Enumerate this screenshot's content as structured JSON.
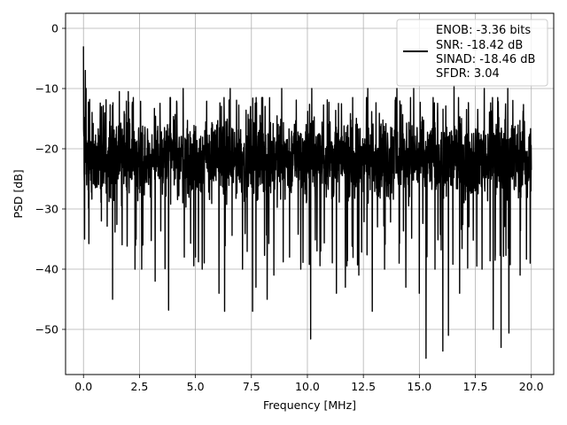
{
  "chart_data": {
    "type": "line",
    "xlabel": "Frequency [MHz]",
    "ylabel": "PSD [dB]",
    "xlim": [
      -0.8,
      21.0
    ],
    "ylim": [
      -57.5,
      2.5
    ],
    "xticks": [
      0.0,
      2.5,
      5.0,
      7.5,
      10.0,
      12.5,
      15.0,
      17.5,
      20.0
    ],
    "xtick_labels": [
      "0.0",
      "2.5",
      "5.0",
      "7.5",
      "10.0",
      "12.5",
      "15.0",
      "17.5",
      "20.0"
    ],
    "yticks": [
      0,
      -10,
      -20,
      -30,
      -40,
      -50
    ],
    "ytick_labels": [
      "0",
      "−10",
      "−20",
      "−30",
      "−40",
      "−50"
    ],
    "grid": true,
    "legend_position": "top-right",
    "legend_lines": [
      "ENOB: -3.36 bits",
      "SNR: -18.42 dB",
      "SINAD: -18.46 dB",
      "SFDR: 3.04"
    ],
    "series": [
      {
        "color": "#000000",
        "x_range": [
          0.0,
          20.0
        ],
        "typical_range": [
          -30,
          -13
        ],
        "mean": -21.5,
        "start_value": -3.0,
        "peaks": [
          {
            "x": 0.08,
            "y": -7.0
          },
          {
            "x": 0.12,
            "y": -10.0
          },
          {
            "x": 1.6,
            "y": -10.5
          },
          {
            "x": 2.0,
            "y": -10.5
          },
          {
            "x": 4.45,
            "y": -10.0
          },
          {
            "x": 6.55,
            "y": -10.0
          },
          {
            "x": 8.85,
            "y": -10.0
          },
          {
            "x": 10.2,
            "y": -10.0
          },
          {
            "x": 12.7,
            "y": -10.0
          },
          {
            "x": 14.0,
            "y": -10.0
          },
          {
            "x": 14.75,
            "y": -10.0
          },
          {
            "x": 16.55,
            "y": -9.5
          },
          {
            "x": 17.9,
            "y": -10.0
          },
          {
            "x": 18.3,
            "y": -10.0
          },
          {
            "x": 18.95,
            "y": -10.0
          },
          {
            "x": 19.95,
            "y": -10.0
          }
        ],
        "troughs": [
          {
            "x": 0.05,
            "y": -35.0
          },
          {
            "x": 0.8,
            "y": -32.0
          },
          {
            "x": 1.3,
            "y": -45.0
          },
          {
            "x": 2.3,
            "y": -40.0
          },
          {
            "x": 2.6,
            "y": -40.0
          },
          {
            "x": 2.65,
            "y": -36.0
          },
          {
            "x": 3.2,
            "y": -42.0
          },
          {
            "x": 3.8,
            "y": -46.8
          },
          {
            "x": 4.5,
            "y": -38.0
          },
          {
            "x": 5.0,
            "y": -38.0
          },
          {
            "x": 5.3,
            "y": -40.0
          },
          {
            "x": 6.05,
            "y": -44.0
          },
          {
            "x": 6.3,
            "y": -47.0
          },
          {
            "x": 7.1,
            "y": -40.0
          },
          {
            "x": 7.55,
            "y": -47.0
          },
          {
            "x": 7.7,
            "y": -43.0
          },
          {
            "x": 8.2,
            "y": -45.0
          },
          {
            "x": 8.5,
            "y": -41.0
          },
          {
            "x": 9.2,
            "y": -38.0
          },
          {
            "x": 9.7,
            "y": -40.0
          },
          {
            "x": 10.15,
            "y": -51.6
          },
          {
            "x": 10.6,
            "y": -37.0
          },
          {
            "x": 11.3,
            "y": -44.0
          },
          {
            "x": 11.7,
            "y": -43.0
          },
          {
            "x": 12.3,
            "y": -41.0
          },
          {
            "x": 12.9,
            "y": -47.0
          },
          {
            "x": 13.45,
            "y": -40.0
          },
          {
            "x": 14.1,
            "y": -39.0
          },
          {
            "x": 14.4,
            "y": -43.0
          },
          {
            "x": 15.0,
            "y": -44.0
          },
          {
            "x": 15.3,
            "y": -54.8
          },
          {
            "x": 15.7,
            "y": -40.0
          },
          {
            "x": 16.05,
            "y": -53.6
          },
          {
            "x": 16.3,
            "y": -51.0
          },
          {
            "x": 16.8,
            "y": -44.0
          },
          {
            "x": 17.8,
            "y": -40.0
          },
          {
            "x": 18.3,
            "y": -50.0
          },
          {
            "x": 18.65,
            "y": -53.0
          },
          {
            "x": 19.0,
            "y": -50.6
          },
          {
            "x": 19.5,
            "y": -41.0
          },
          {
            "x": 19.95,
            "y": -39.0
          }
        ]
      }
    ]
  }
}
